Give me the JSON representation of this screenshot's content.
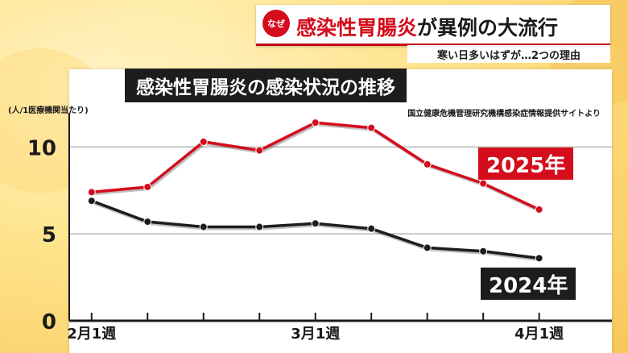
{
  "header": {
    "badge": "なぜ",
    "title_red": "感染性胃腸炎",
    "title_black": "が異例の大流行",
    "subtitle": "寒い日多いはずが…2つの理由"
  },
  "chart_data": {
    "type": "line",
    "title": "感染性胃腸炎の感染状況の推移",
    "ylabel": "(人/1医療機関当たり)",
    "source": "国立健康危機管理研究機構感染症情報提供サイトより",
    "x_tick_labels": [
      "2月1週",
      "3月1週",
      "4月1週"
    ],
    "x_tick_positions": [
      0,
      4,
      8
    ],
    "yticks": [
      0,
      5,
      10
    ],
    "ylim": [
      0,
      11.5
    ],
    "xlim": [
      -0.4,
      9.3
    ],
    "grid": true,
    "series": [
      {
        "name": "2025年",
        "color": "#d40c1c",
        "values": [
          7.4,
          7.7,
          10.3,
          9.8,
          11.4,
          11.1,
          9.0,
          7.9,
          6.4
        ]
      },
      {
        "name": "2024年",
        "color": "#1d1d1d",
        "values": [
          6.9,
          5.7,
          5.4,
          5.4,
          5.6,
          5.3,
          4.2,
          4.0,
          3.6
        ]
      }
    ]
  }
}
